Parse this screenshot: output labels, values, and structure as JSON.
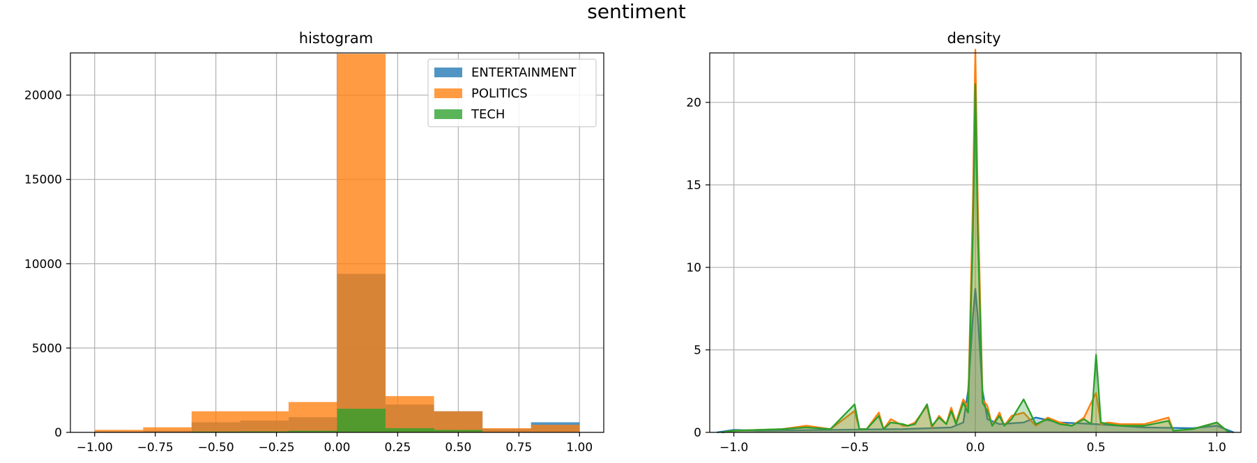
{
  "figure": {
    "suptitle": "sentiment"
  },
  "colors": {
    "ENTERTAINMENT": "#1f77b4",
    "POLITICS": "#ff7f0e",
    "TECH": "#2ca02c",
    "grid": "#b0b0b0",
    "axes": "#000000"
  },
  "chart_data": [
    {
      "type": "bar",
      "title": "histogram",
      "xlabel": "",
      "ylabel": "",
      "xlim": [
        -1.1,
        1.1
      ],
      "ylim": [
        0,
        22500
      ],
      "xticks": [
        -1.0,
        -0.75,
        -0.5,
        -0.25,
        0.0,
        0.25,
        0.5,
        0.75,
        1.0
      ],
      "xtick_labels": [
        "−1.00",
        "−0.75",
        "−0.50",
        "−0.25",
        "0.00",
        "0.25",
        "0.50",
        "0.75",
        "1.00"
      ],
      "yticks": [
        0,
        5000,
        10000,
        15000,
        20000
      ],
      "ytick_labels": [
        "0",
        "5000",
        "10000",
        "15000",
        "20000"
      ],
      "grid": true,
      "legend": "top-right",
      "bin_edges": [
        -1.0,
        -0.8,
        -0.6,
        -0.4,
        -0.2,
        0.0,
        0.2,
        0.4,
        0.6,
        0.8,
        1.0
      ],
      "series": [
        {
          "name": "ENTERTAINMENT",
          "values": [
            50,
            100,
            600,
            700,
            900,
            9400,
            1650,
            1250,
            200,
            600
          ]
        },
        {
          "name": "POLITICS",
          "values": [
            150,
            300,
            1250,
            1250,
            1800,
            22450,
            2150,
            1250,
            250,
            450
          ]
        },
        {
          "name": "TECH",
          "values": [
            10,
            20,
            50,
            60,
            100,
            1400,
            250,
            150,
            20,
            10
          ]
        }
      ]
    },
    {
      "type": "area",
      "title": "density",
      "xlabel": "",
      "ylabel": "",
      "xlim": [
        -1.1,
        1.1
      ],
      "ylim": [
        0,
        23
      ],
      "xticks": [
        -1.0,
        -0.5,
        0.0,
        0.5,
        1.0
      ],
      "xtick_labels": [
        "−1.0",
        "−0.5",
        "0.0",
        "0.5",
        "1.0"
      ],
      "yticks": [
        0,
        5,
        10,
        15,
        20
      ],
      "ytick_labels": [
        "0",
        "5",
        "10",
        "15",
        "20"
      ],
      "grid": true,
      "series": [
        {
          "name": "ENTERTAINMENT",
          "x": [
            -1.07,
            -1.0,
            -0.9,
            -0.6,
            -0.3,
            -0.1,
            -0.05,
            -0.03,
            -0.01,
            0.0,
            0.01,
            0.03,
            0.05,
            0.1,
            0.2,
            0.25,
            0.35,
            0.5,
            0.7,
            0.9,
            1.0,
            1.07
          ],
          "y": [
            0.0,
            0.15,
            0.1,
            0.15,
            0.2,
            0.3,
            0.6,
            2.5,
            7.0,
            8.7,
            7.0,
            2.5,
            0.8,
            0.5,
            0.6,
            0.9,
            0.6,
            0.5,
            0.3,
            0.25,
            0.4,
            0.0
          ]
        },
        {
          "name": "POLITICS",
          "x": [
            -1.05,
            -1.0,
            -0.8,
            -0.7,
            -0.6,
            -0.5,
            -0.48,
            -0.45,
            -0.4,
            -0.38,
            -0.35,
            -0.3,
            -0.28,
            -0.25,
            -0.2,
            -0.18,
            -0.15,
            -0.12,
            -0.1,
            -0.08,
            -0.05,
            -0.03,
            -0.01,
            0.0,
            0.01,
            0.03,
            0.05,
            0.07,
            0.1,
            0.12,
            0.15,
            0.2,
            0.25,
            0.3,
            0.35,
            0.4,
            0.45,
            0.5,
            0.52,
            0.55,
            0.6,
            0.7,
            0.8,
            0.82,
            0.9,
            1.0,
            1.05
          ],
          "y": [
            0.0,
            0.1,
            0.2,
            0.4,
            0.2,
            1.3,
            0.2,
            0.2,
            1.2,
            0.2,
            0.8,
            0.4,
            0.4,
            0.6,
            1.6,
            0.3,
            1.0,
            0.5,
            1.5,
            0.6,
            2.0,
            1.5,
            14.0,
            23.2,
            14.0,
            2.0,
            1.6,
            0.4,
            1.2,
            0.4,
            1.0,
            1.2,
            0.4,
            0.9,
            0.6,
            0.4,
            0.9,
            2.4,
            0.5,
            0.6,
            0.5,
            0.5,
            0.9,
            0.1,
            0.2,
            0.6,
            0.0
          ]
        },
        {
          "name": "TECH",
          "x": [
            -1.05,
            -1.0,
            -0.8,
            -0.7,
            -0.6,
            -0.5,
            -0.48,
            -0.45,
            -0.4,
            -0.38,
            -0.35,
            -0.3,
            -0.28,
            -0.25,
            -0.2,
            -0.18,
            -0.15,
            -0.12,
            -0.1,
            -0.08,
            -0.05,
            -0.03,
            -0.01,
            0.0,
            0.01,
            0.03,
            0.05,
            0.07,
            0.1,
            0.12,
            0.15,
            0.2,
            0.25,
            0.3,
            0.35,
            0.4,
            0.45,
            0.48,
            0.5,
            0.52,
            0.55,
            0.6,
            0.7,
            0.8,
            0.82,
            0.9,
            1.0,
            1.05
          ],
          "y": [
            0.0,
            0.1,
            0.2,
            0.3,
            0.2,
            1.7,
            0.2,
            0.2,
            1.0,
            0.2,
            0.6,
            0.5,
            0.4,
            0.5,
            1.7,
            0.4,
            0.9,
            0.5,
            1.3,
            0.5,
            1.8,
            1.2,
            12.0,
            21.1,
            12.0,
            1.8,
            1.3,
            0.4,
            1.0,
            0.4,
            0.8,
            2.0,
            0.5,
            0.8,
            0.5,
            0.4,
            0.8,
            0.5,
            4.7,
            0.6,
            0.5,
            0.4,
            0.4,
            0.7,
            0.1,
            0.2,
            0.6,
            0.0
          ]
        }
      ]
    }
  ]
}
